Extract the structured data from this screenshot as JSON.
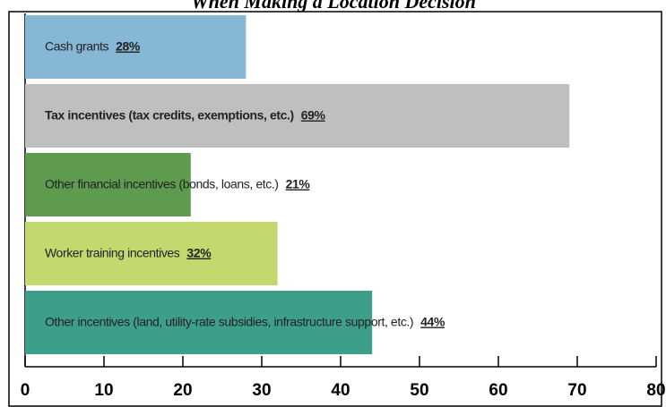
{
  "chart_data": {
    "type": "barh",
    "title": "When Making a Location Decision",
    "categories": [
      "Cash grants",
      "Tax incentives (tax credits, exemptions, etc.)",
      "Other financial incentives (bonds, loans, etc.)",
      "Worker training incentives",
      "Other incentives (land, utility-rate subsidies, infrastructure support, etc.)"
    ],
    "values": [
      28,
      69,
      21,
      32,
      44
    ],
    "value_labels": [
      "28%",
      "69%",
      "21%",
      "32%",
      "44%"
    ],
    "colors": [
      "#86b8d6",
      "#bfbfbf",
      "#5f9b4f",
      "#c3d86e",
      "#3d9f8b"
    ],
    "xlim": [
      0,
      80
    ],
    "xticks": [
      0,
      10,
      20,
      30,
      40,
      50,
      60,
      70,
      80
    ]
  }
}
